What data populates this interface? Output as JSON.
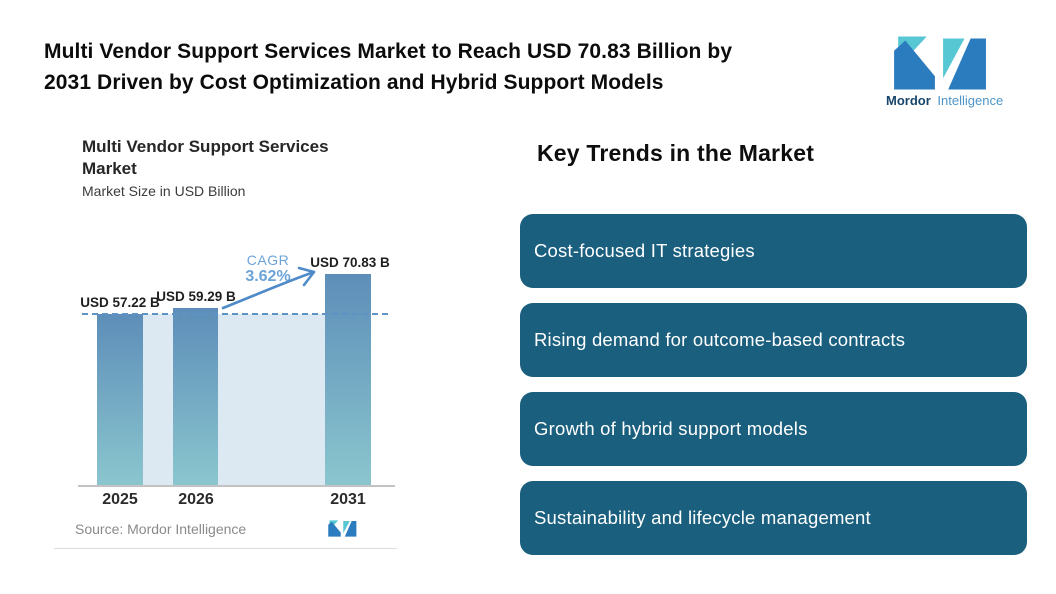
{
  "page": {
    "title_line1": "Multi Vendor Support Services Market to Reach USD 70.83 Billion by",
    "title_line2": "2031 Driven by Cost Optimization and Hybrid Support Models"
  },
  "brand": {
    "name_bold": "Mordor",
    "name_light": "Intelligence"
  },
  "chart": {
    "title_line1": "Multi Vendor Support Services",
    "title_line2": "Market",
    "subtitle": "Market Size in USD Billion",
    "source": "Source: Mordor Intelligence"
  },
  "chart_data": {
    "type": "bar",
    "title": "Multi Vendor Support Services Market",
    "subtitle": "Market Size in USD Billion",
    "categories": [
      "2025",
      "2026",
      "2031"
    ],
    "values": [
      57.22,
      59.29,
      70.83
    ],
    "value_labels": [
      "USD 57.22 B",
      "USD 59.29 B",
      "USD 70.83 B"
    ],
    "cagr_label": "CAGR",
    "cagr_value": "3.62%",
    "baseline_at_first_bar": true,
    "ylim": [
      0,
      75
    ],
    "grid": false,
    "legend": false,
    "source": "Source: Mordor Intelligence",
    "colors": {
      "bar_gradient_top": "#5d8eb9",
      "bar_gradient_bottom": "#8bc6ce",
      "area_fill": "#dde9f2",
      "dashed_line": "#5e93c6",
      "arrow": "#4e8bc8",
      "cagr_text": "#6da4d8"
    }
  },
  "trends": {
    "heading": "Key Trends in the Market",
    "items": [
      "Cost-focused IT strategies",
      "Rising demand for outcome-based contracts",
      "Growth of hybrid support models",
      "Sustainability and lifecycle management"
    ],
    "box_color": "#1a5f7e"
  }
}
